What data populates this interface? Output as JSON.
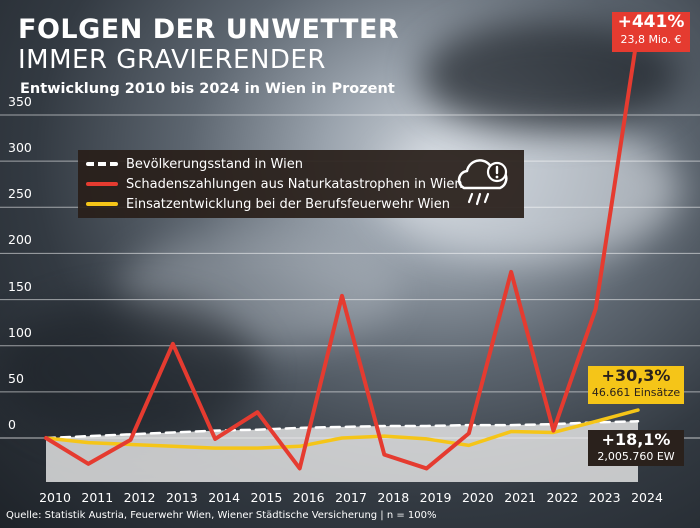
{
  "title_line1": "FOLGEN DER UNWETTER",
  "title_line2": "IMMER GRAVIERENDER",
  "subtitle": "Entwicklung 2010 bis 2024 in Wien in Prozent",
  "source": "Quelle: Statistik Austria, Feuerwehr Wien, Wiener Städtische Versicherung | n = 100%",
  "legend": [
    {
      "label": "Bevölkerungsstand in Wien",
      "color": "#ffffff",
      "style": "dashed"
    },
    {
      "label": "Schadenszahlungen aus Naturkatastrophen in Wien",
      "color": "#e53b30",
      "style": "solid"
    },
    {
      "label": "Einsatzentwicklung bei der Berufsfeuerwehr Wien",
      "color": "#f5c518",
      "style": "solid"
    }
  ],
  "legend_icon": "storm-cloud-warning-icon",
  "callouts": {
    "damage": {
      "value": "+441%",
      "detail": "23,8 Mio. €",
      "bg": "#e53b30"
    },
    "operations": {
      "value": "+30,3%",
      "detail": "46.661 Einsätze",
      "bg": "#f5c518"
    },
    "population": {
      "value": "+18,1%",
      "detail": "2,005.760 EW",
      "bg": "#2a211c"
    }
  },
  "chart_data": {
    "type": "line",
    "x": [
      "2010",
      "2011",
      "2012",
      "2013",
      "2014",
      "2015",
      "2016",
      "2017",
      "2018",
      "2019",
      "2020",
      "2021",
      "2022",
      "2023",
      "2024"
    ],
    "ylim": [
      -30,
      350
    ],
    "yticks": [
      0,
      50,
      100,
      150,
      200,
      250,
      300,
      350
    ],
    "grid": true,
    "legend_position": "top",
    "series": [
      {
        "name": "Bevölkerungsstand in Wien",
        "color": "#ffffff",
        "dashed": true,
        "values": [
          0,
          2,
          4,
          6,
          8,
          9,
          11,
          12,
          13,
          13,
          14,
          14,
          15,
          17,
          18.1
        ]
      },
      {
        "name": "Schadenszahlungen aus Naturkatastrophen in Wien",
        "color": "#e53b30",
        "dashed": false,
        "values": [
          0,
          -28,
          -2,
          102,
          -1,
          28,
          -33,
          154,
          -18,
          -33,
          5,
          180,
          8,
          140,
          441
        ]
      },
      {
        "name": "Einsatzentwicklung bei der Berufsfeuerwehr Wien",
        "color": "#f5c518",
        "dashed": false,
        "values": [
          0,
          -5,
          -7,
          -9,
          -11,
          -11,
          -9,
          0,
          2,
          -1,
          -8,
          7,
          6,
          18,
          30.3
        ]
      }
    ]
  }
}
